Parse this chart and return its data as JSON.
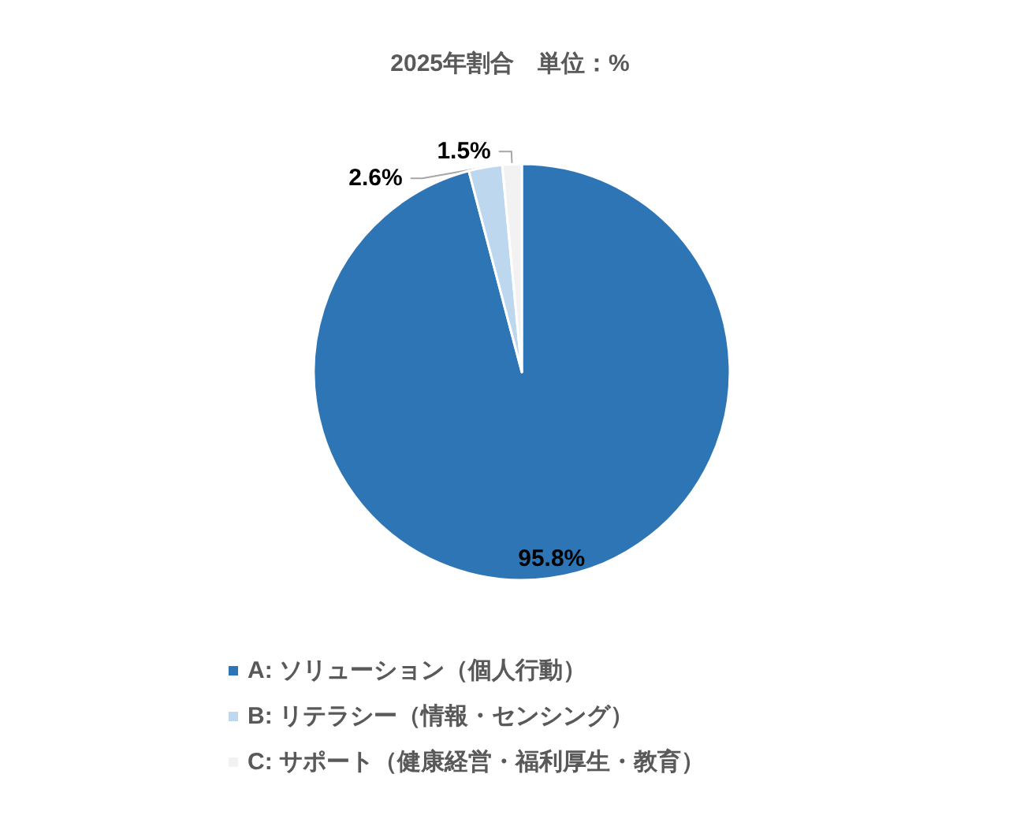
{
  "chart_data": {
    "type": "pie",
    "title": "2025年割合　単位：%",
    "categories": [
      "A: ソリューション（個人行動）",
      "B: リテラシー（情報・センシング）",
      "C: サポート（健康経営・福利厚生・教育）"
    ],
    "values": [
      95.8,
      2.6,
      1.5
    ],
    "colors": [
      "#2e75b6",
      "#bdd7ee",
      "#f2f2f2"
    ],
    "value_labels": [
      "95.8%",
      "2.6%",
      "1.5%"
    ],
    "legend": "bottom"
  }
}
